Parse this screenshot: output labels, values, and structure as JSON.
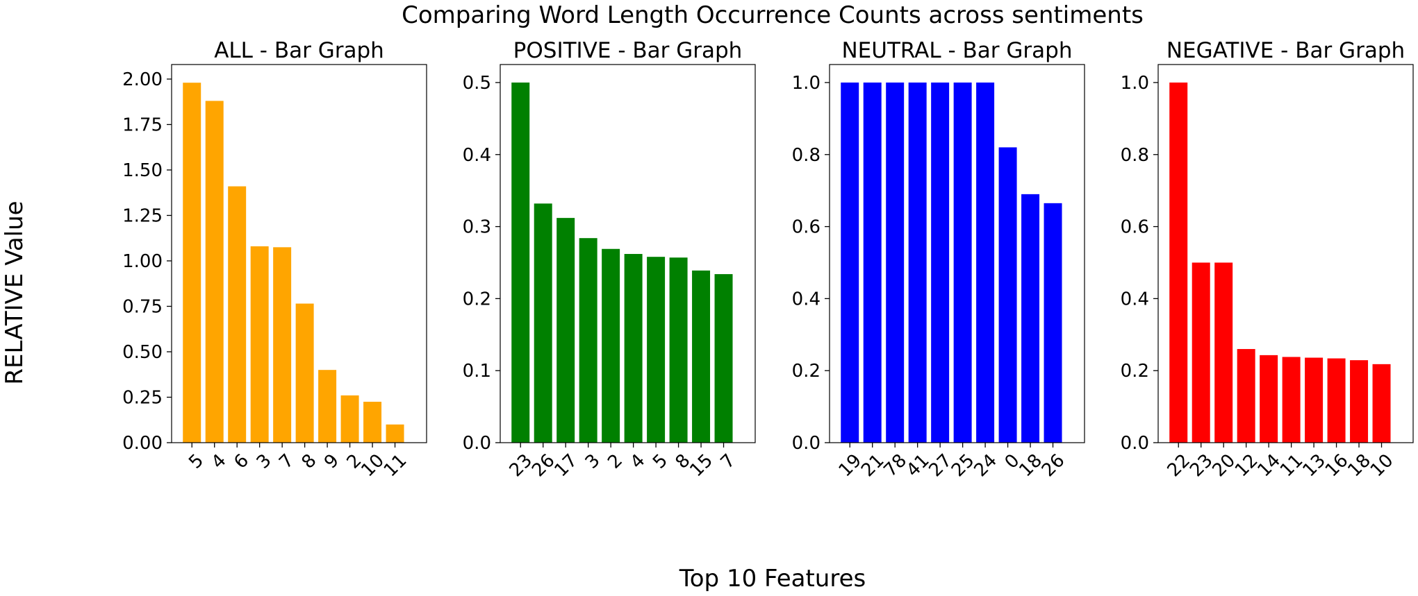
{
  "figure": {
    "title": "Comparing Word Length Occurrence Counts across sentiments",
    "xlabel": "Top 10 Features",
    "ylabel": "RELATIVE Value"
  },
  "chart_data": [
    {
      "type": "bar",
      "title": "ALL - Bar Graph",
      "categories": [
        "5",
        "4",
        "6",
        "3",
        "7",
        "8",
        "9",
        "2",
        "10",
        "11"
      ],
      "values": [
        1.98,
        1.88,
        1.41,
        1.08,
        1.075,
        0.765,
        0.4,
        0.26,
        0.225,
        0.1
      ],
      "ylim": [
        0,
        2.08
      ],
      "yticks": [
        0.0,
        0.25,
        0.5,
        0.75,
        1.0,
        1.25,
        1.5,
        1.75,
        2.0
      ],
      "ytick_labels": [
        "0.00",
        "0.25",
        "0.50",
        "0.75",
        "1.00",
        "1.25",
        "1.50",
        "1.75",
        "2.00"
      ],
      "color": "#ffa500",
      "grid": false
    },
    {
      "type": "bar",
      "title": "POSITIVE - Bar Graph",
      "categories": [
        "23",
        "26",
        "17",
        "3",
        "2",
        "4",
        "5",
        "8",
        "15",
        "7"
      ],
      "values": [
        0.5,
        0.332,
        0.312,
        0.284,
        0.269,
        0.262,
        0.258,
        0.257,
        0.239,
        0.234
      ],
      "ylim": [
        0,
        0.525
      ],
      "yticks": [
        0.0,
        0.1,
        0.2,
        0.3,
        0.4,
        0.5
      ],
      "ytick_labels": [
        "0.0",
        "0.1",
        "0.2",
        "0.3",
        "0.4",
        "0.5"
      ],
      "color": "#008000",
      "grid": false
    },
    {
      "type": "bar",
      "title": "NEUTRAL - Bar Graph",
      "categories": [
        "19",
        "21",
        "78",
        "41",
        "27",
        "25",
        "24",
        "0",
        "18",
        "26"
      ],
      "values": [
        1.0,
        1.0,
        1.0,
        1.0,
        1.0,
        1.0,
        1.0,
        0.82,
        0.69,
        0.665
      ],
      "ylim": [
        0,
        1.05
      ],
      "yticks": [
        0.0,
        0.2,
        0.4,
        0.6,
        0.8,
        1.0
      ],
      "ytick_labels": [
        "0.0",
        "0.2",
        "0.4",
        "0.6",
        "0.8",
        "1.0"
      ],
      "color": "#0000ff",
      "grid": false
    },
    {
      "type": "bar",
      "title": "NEGATIVE - Bar Graph",
      "categories": [
        "22",
        "23",
        "20",
        "12",
        "14",
        "11",
        "13",
        "16",
        "18",
        "10"
      ],
      "values": [
        1.0,
        0.5,
        0.5,
        0.26,
        0.243,
        0.238,
        0.236,
        0.234,
        0.229,
        0.218
      ],
      "ylim": [
        0,
        1.05
      ],
      "yticks": [
        0.0,
        0.2,
        0.4,
        0.6,
        0.8,
        1.0
      ],
      "ytick_labels": [
        "0.0",
        "0.2",
        "0.4",
        "0.6",
        "0.8",
        "1.0"
      ],
      "color": "#ff0000",
      "grid": false
    }
  ]
}
